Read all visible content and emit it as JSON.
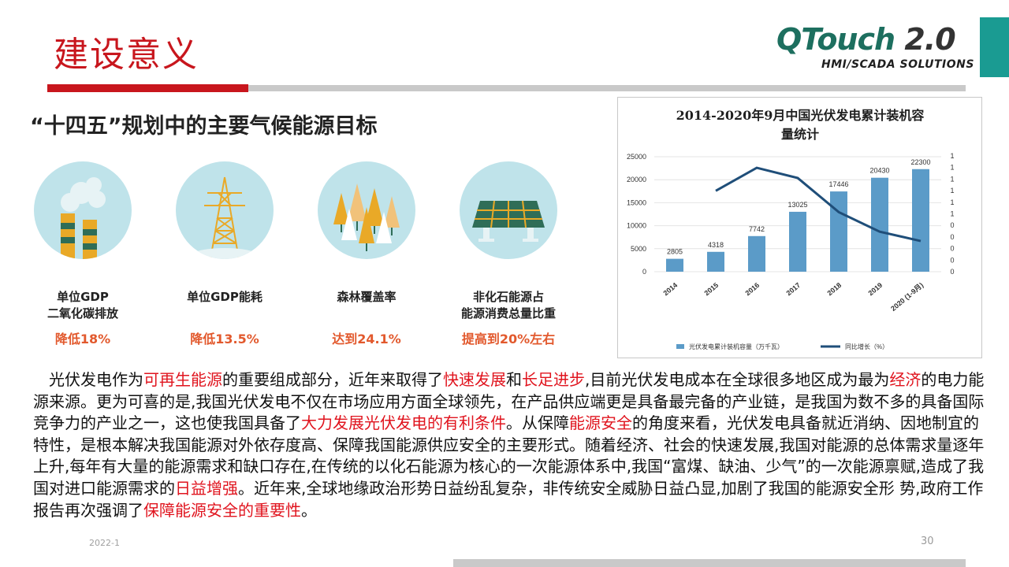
{
  "header": {
    "title": "建设意义",
    "logo_main": "QTouch",
    "logo_version": "2.0",
    "logo_sub": "HMI/SCADA SOLUTIONS"
  },
  "goals": {
    "title": "“十四五”规划中的主要气候能源目标",
    "items": [
      {
        "label_line1": "单位GDP",
        "label_line2": "二氧化碳排放",
        "target": "降低18%",
        "icon": "smokestack-icon"
      },
      {
        "label_line1": "单位GDP能耗",
        "label_line2": "",
        "target": "降低13.5%",
        "icon": "power-tower-icon"
      },
      {
        "label_line1": "森林覆盖率",
        "label_line2": "",
        "target": "达到24.1%",
        "icon": "forest-icon"
      },
      {
        "label_line1": "非化石能源占",
        "label_line2": "能源消费总量比重",
        "target": "提高到20%左右",
        "icon": "solar-panel-icon"
      }
    ]
  },
  "chart_data": {
    "type": "bar",
    "title_line1": "2014-2020年9月中国光伏发电累计装机容",
    "title_line2": "量统计",
    "categories": [
      "2014",
      "2015",
      "2016",
      "2017",
      "2018",
      "2019",
      "2020 (1-9月)"
    ],
    "series": [
      {
        "name": "光伏发电累计装机容量（万千瓦）",
        "type": "bar",
        "values": [
          2805,
          4318,
          7742,
          13025,
          17446,
          20430,
          22300
        ]
      },
      {
        "name": "同比增长（%）",
        "type": "line",
        "values": [
          null,
          0.95,
          1.22,
          1.1,
          0.7,
          0.47,
          0.36
        ]
      }
    ],
    "ylim": [
      0,
      25000
    ],
    "yticks": [
      "0",
      "5000",
      "10000",
      "15000",
      "20000",
      "25000"
    ],
    "y2ticks": [
      "0",
      "0",
      "0",
      "0",
      "0",
      "1",
      "1",
      "1",
      "1",
      "1",
      "1"
    ],
    "colors": {
      "bar": "#5b9bc8",
      "line": "#1f4e79"
    },
    "legend_position": "bottom"
  },
  "body": {
    "p1_a": "光伏发电作为",
    "p1_h1": "可再生能源",
    "p1_b": "的重要组成部分，近年来取得了",
    "p1_h2": "快速发展",
    "p1_c": "和",
    "p1_h3": "长足进步",
    "p1_d": ",目前光伏发电成本在全球很多地区成为最为",
    "p1_h4": "经济",
    "p1_e": "的电力能源来源。更为可喜的是,我国光伏发电不仅在市场应用方面全球领先，在产品供应端更是具备最完备的产业链，是我国为数不多的具备国际竞争力的产业之一，这也使我国具备了",
    "p1_h5": "大力发展光伏发电的有利条件",
    "p1_f": "。从保障",
    "p1_h6": "能源安全",
    "p1_g": "的角度来看，光伏发电具备就近消纳、因地制宜的特性，是根本解决我国能源对外依存度高、保障我国能源供应安全的主要形式。随着经济、社会的快速发展,我国对能源的总体需求量逐年上升,每年有大量的能源需求和缺口存在,在传统的以化石能源为核心的一次能源体系中,我国“富煤、缺油、少气”的一次能源禀赋,造成了我国对进口能源需求的",
    "p1_h7": "日益增强",
    "p1_h": "。近年来,全球地缘政治形势日益纷乱复杂，非传统安全威胁日益凸显,加剧了我国的能源安全形 势,政府工作报告再次强调了",
    "p1_h8": "保障能源安全的重要性",
    "p1_i": "。"
  },
  "footer": {
    "date": "2022-1",
    "page": "30"
  }
}
